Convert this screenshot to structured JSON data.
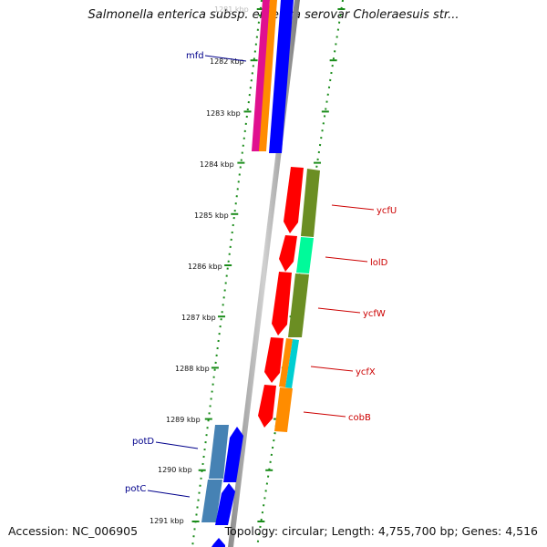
{
  "title": "Salmonella enterica subsp. enterica serovar Choleraesuis str...",
  "footer": {
    "accession": "Accession: NC_006905",
    "stats": "Topology: circular; Length: 4,755,700 bp; Genes: 4,516"
  },
  "ruler": {
    "unit": "kbp",
    "labels": [
      "1281 kbp",
      "1282 kbp",
      "1283 kbp",
      "1284 kbp",
      "1285 kbp",
      "1286 kbp",
      "1287 kbp",
      "1288 kbp",
      "1289 kbp",
      "1290 kbp",
      "1291 kbp"
    ]
  },
  "genes": [
    {
      "name": "mfd",
      "strand": "minus",
      "label_color": "#00008b",
      "bar_colors": [
        "#e0108f",
        "#ff8c00",
        "#0000ff"
      ]
    },
    {
      "name": "ycfU",
      "strand": "plus",
      "label_color": "#cc0000",
      "bar_colors": [
        "#ff0000",
        "#6b8e23"
      ]
    },
    {
      "name": "lolD",
      "strand": "plus",
      "label_color": "#cc0000",
      "bar_colors": [
        "#ff0000",
        "#00fa9a"
      ]
    },
    {
      "name": "ycfW",
      "strand": "plus",
      "label_color": "#cc0000",
      "bar_colors": [
        "#ff0000",
        "#6b8e23"
      ]
    },
    {
      "name": "ycfX",
      "strand": "plus",
      "label_color": "#cc0000",
      "bar_colors": [
        "#ff0000",
        "#ff8c00",
        "#00ced1"
      ]
    },
    {
      "name": "cobB",
      "strand": "plus",
      "label_color": "#cc0000",
      "bar_colors": [
        "#ff0000",
        "#ff8c00"
      ]
    },
    {
      "name": "potD",
      "strand": "minus",
      "label_color": "#00008b",
      "bar_colors": [
        "#4682b4",
        "#0000ff"
      ]
    },
    {
      "name": "potC",
      "strand": "minus",
      "label_color": "#00008b",
      "bar_colors": [
        "#4682b4",
        "#0000ff"
      ]
    }
  ]
}
